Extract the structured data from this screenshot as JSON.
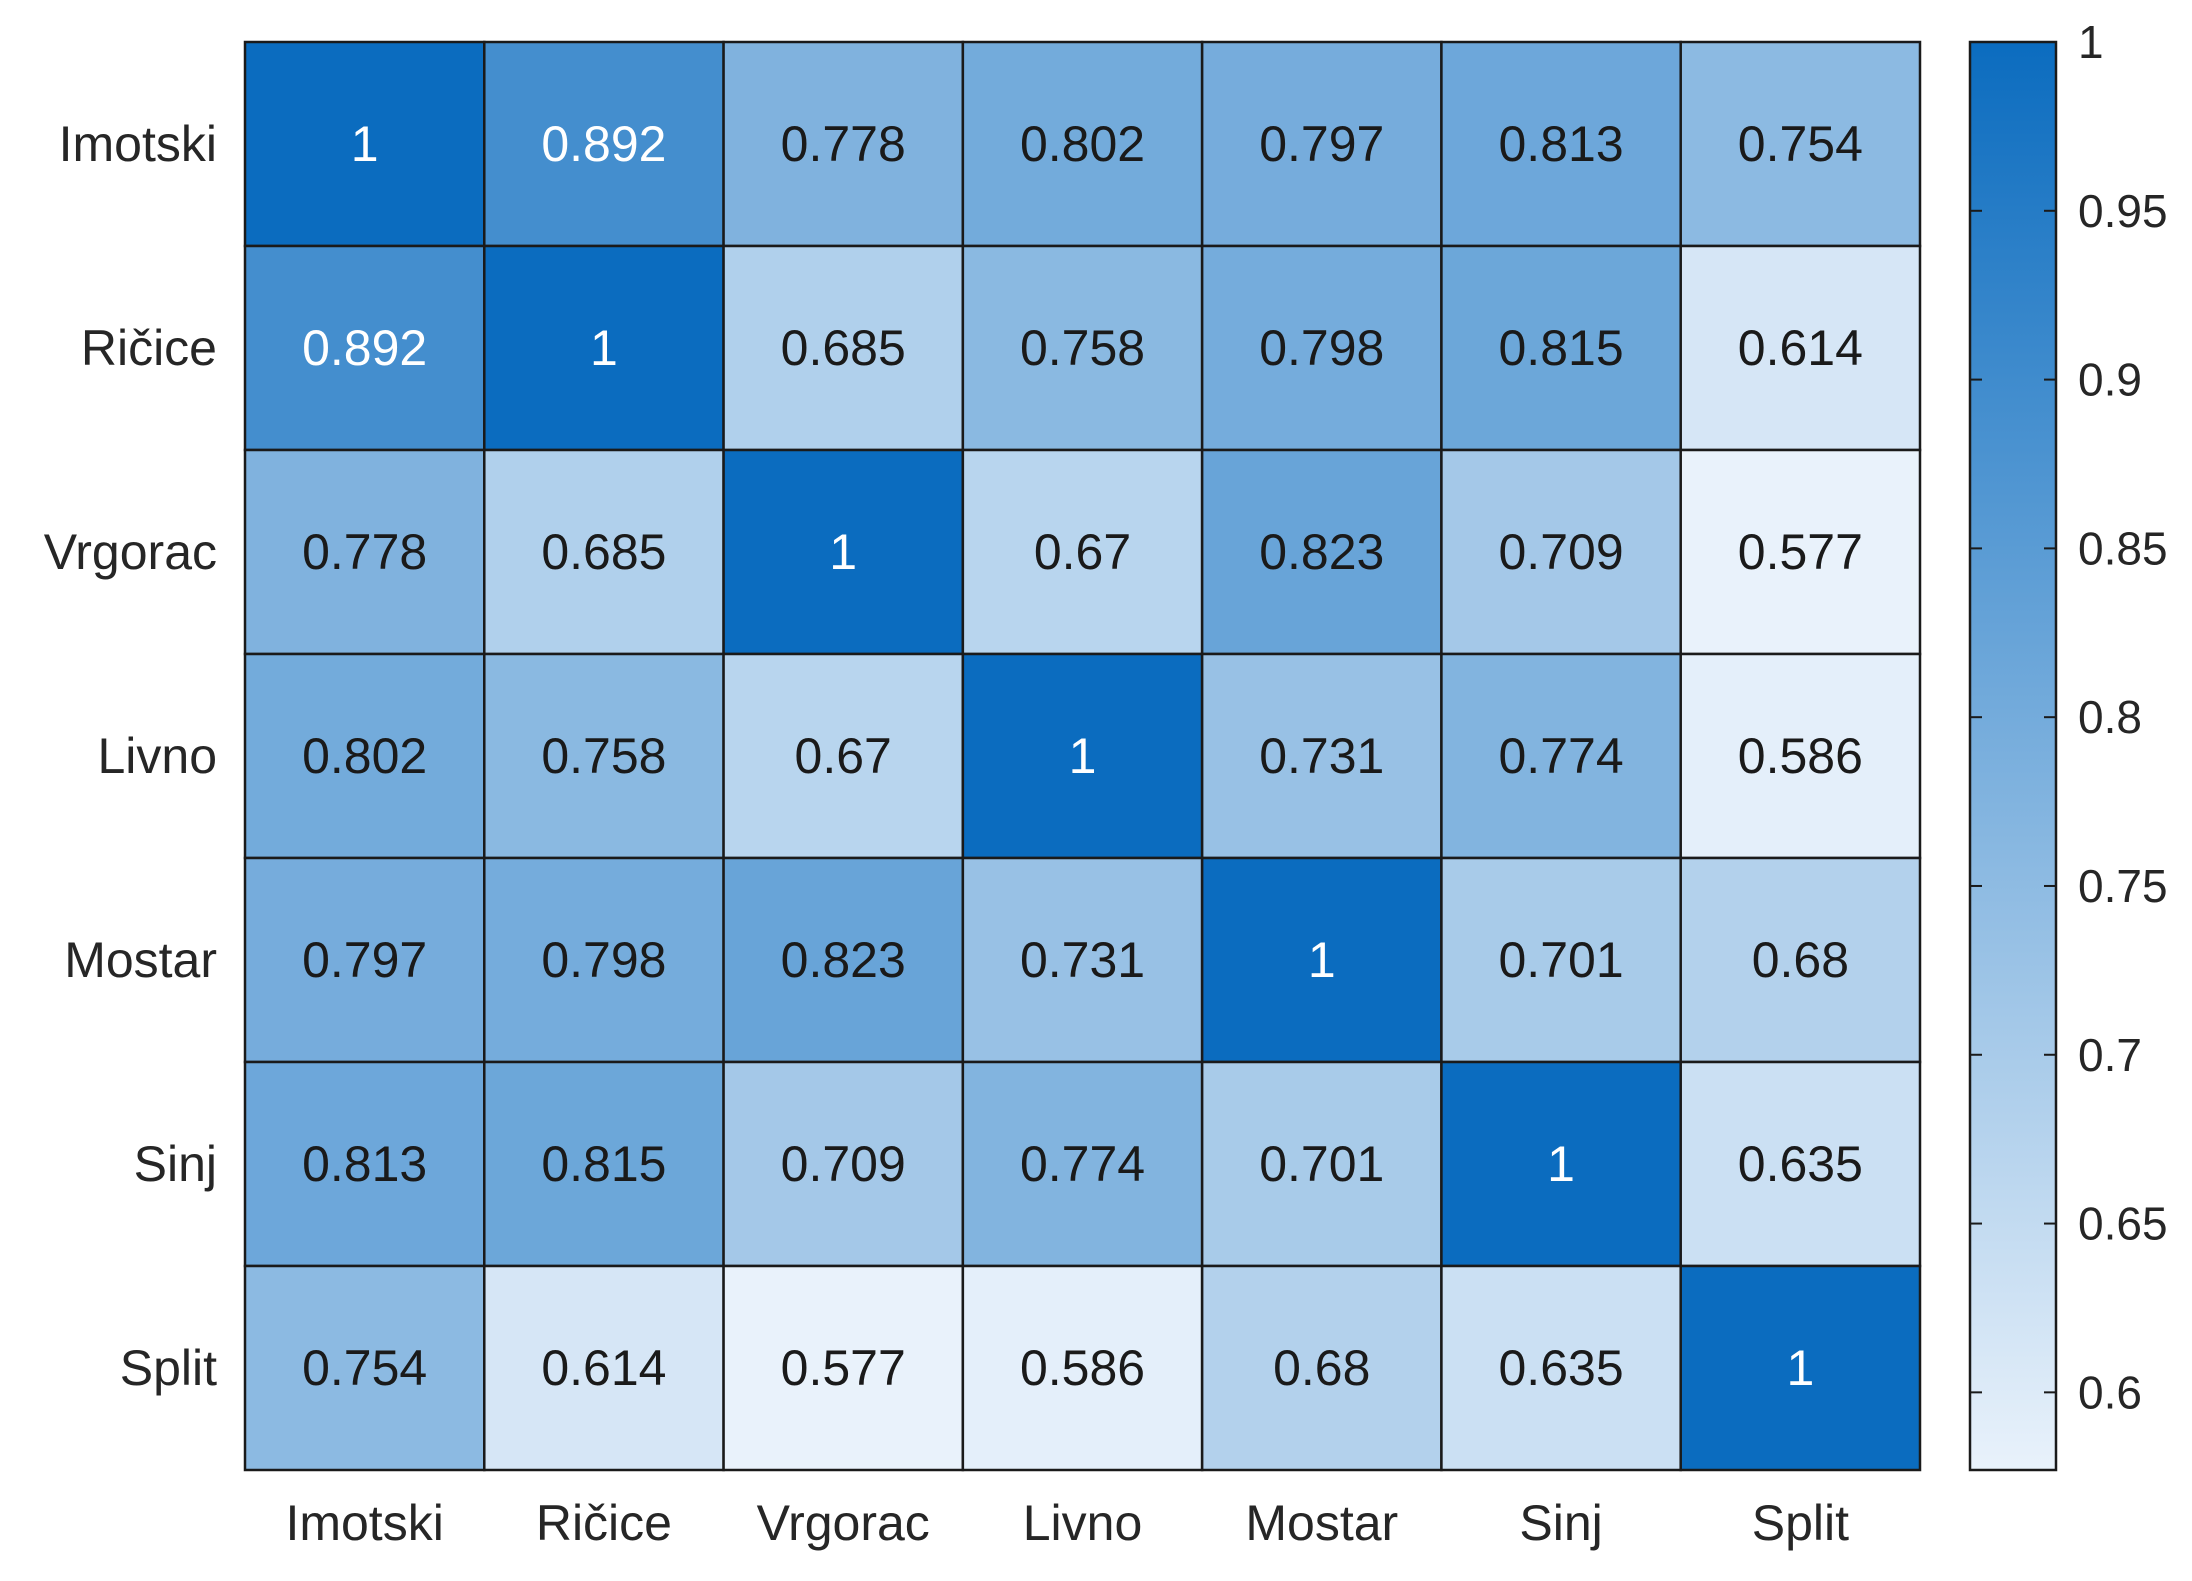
{
  "chart_data": {
    "type": "heatmap",
    "title": "",
    "xlabel": "",
    "ylabel": "",
    "x_categories": [
      "Imotski",
      "Ričice",
      "Vrgorac",
      "Livno",
      "Mostar",
      "Sinj",
      "Split"
    ],
    "y_categories": [
      "Imotski",
      "Ričice",
      "Vrgorac",
      "Livno",
      "Mostar",
      "Sinj",
      "Split"
    ],
    "values": [
      [
        1,
        0.892,
        0.778,
        0.802,
        0.797,
        0.813,
        0.754
      ],
      [
        0.892,
        1,
        0.685,
        0.758,
        0.798,
        0.815,
        0.614
      ],
      [
        0.778,
        0.685,
        1,
        0.67,
        0.823,
        0.709,
        0.577
      ],
      [
        0.802,
        0.758,
        0.67,
        1,
        0.731,
        0.774,
        0.586
      ],
      [
        0.797,
        0.798,
        0.823,
        0.731,
        1,
        0.701,
        0.68
      ],
      [
        0.813,
        0.815,
        0.709,
        0.774,
        0.701,
        1,
        0.635
      ],
      [
        0.754,
        0.614,
        0.577,
        0.586,
        0.68,
        0.635,
        1
      ]
    ],
    "cell_labels": [
      [
        "1",
        "0.892",
        "0.778",
        "0.802",
        "0.797",
        "0.813",
        "0.754"
      ],
      [
        "0.892",
        "1",
        "0.685",
        "0.758",
        "0.798",
        "0.815",
        "0.614"
      ],
      [
        "0.778",
        "0.685",
        "1",
        "0.67",
        "0.823",
        "0.709",
        "0.577"
      ],
      [
        "0.802",
        "0.758",
        "0.67",
        "1",
        "0.731",
        "0.774",
        "0.586"
      ],
      [
        "0.797",
        "0.798",
        "0.823",
        "0.731",
        "1",
        "0.701",
        "0.68"
      ],
      [
        "0.813",
        "0.815",
        "0.709",
        "0.774",
        "0.701",
        "1",
        "0.635"
      ],
      [
        "0.754",
        "0.614",
        "0.577",
        "0.586",
        "0.68",
        "0.635",
        "1"
      ]
    ],
    "colorbar": {
      "range": [
        0.577,
        1
      ],
      "ticks": [
        0.6,
        0.65,
        0.7,
        0.75,
        0.8,
        0.85,
        0.9,
        0.95,
        1
      ],
      "tick_labels": [
        "0.6",
        "0.65",
        "0.7",
        "0.75",
        "0.8",
        "0.85",
        "0.9",
        "0.95",
        "1"
      ],
      "color_low": "#e9f2fb",
      "color_high": "#0b6cbf",
      "placement": "right"
    },
    "cell_text_color_dark": "#1a1a1a",
    "cell_text_color_light": "#ffffff",
    "cell_border_color": "#1a1a1a"
  }
}
